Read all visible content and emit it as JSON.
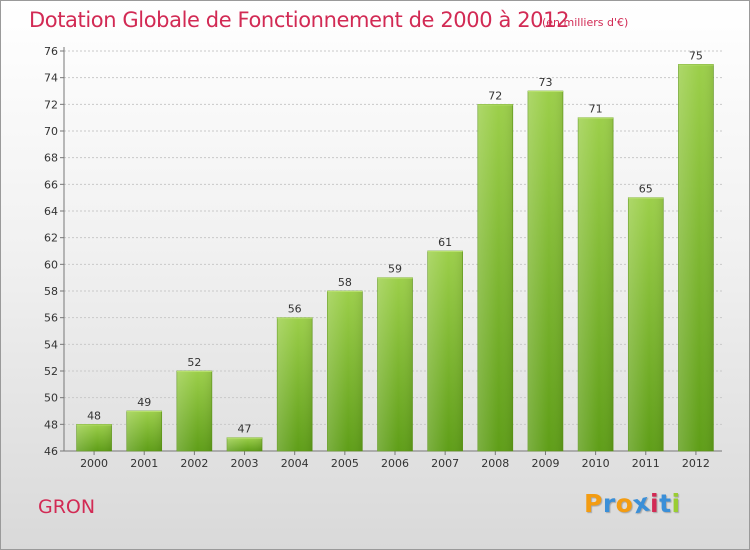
{
  "header": {
    "title": "Dotation Globale de Fonctionnement de 2000 à 2012",
    "subtitle": "(en milliers d'€)"
  },
  "footer": {
    "commune": "GRON",
    "logo": {
      "letters": [
        "P",
        "r",
        "o",
        "x",
        "i",
        "t",
        "i"
      ],
      "colors": [
        "#f39c12",
        "#3a8fd8",
        "#f39c12",
        "#3a8fd8",
        "#d22a54",
        "#3a8fd8",
        "#9acd32"
      ]
    }
  },
  "chart_data": {
    "type": "bar",
    "categories": [
      "2000",
      "2001",
      "2002",
      "2003",
      "2004",
      "2005",
      "2006",
      "2007",
      "2008",
      "2009",
      "2010",
      "2011",
      "2012"
    ],
    "values": [
      48,
      49,
      52,
      47,
      56,
      58,
      59,
      61,
      72,
      73,
      71,
      65,
      75
    ],
    "ylim": [
      46,
      76
    ],
    "yticks": [
      46,
      48,
      50,
      52,
      54,
      56,
      58,
      60,
      62,
      64,
      66,
      68,
      70,
      72,
      74,
      76
    ],
    "grid": true,
    "bar_color_top": "#9ccf4a",
    "bar_color_bottom": "#5f9e18"
  }
}
